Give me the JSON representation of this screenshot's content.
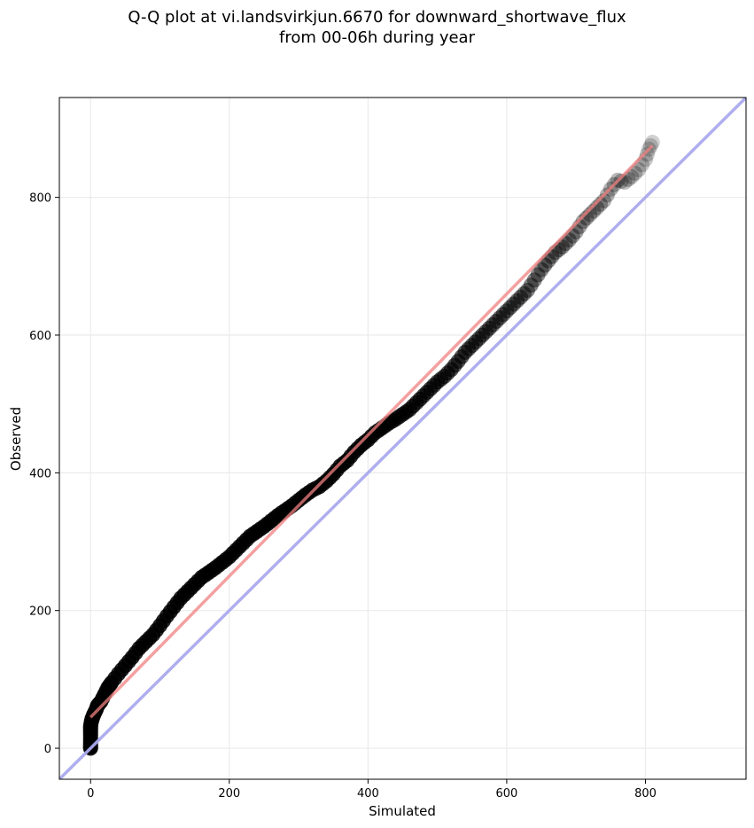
{
  "title_line1": "Q-Q plot at vi.landsvirkjun.6670 for downward_shortwave_flux",
  "title_line2": "from 00-06h during year",
  "chart_data": {
    "type": "scatter",
    "title": "Q-Q plot at vi.landsvirkjun.6670 for downward_shortwave_flux from 00-06h during year",
    "xlabel": "Simulated",
    "ylabel": "Observed",
    "xlim": [
      -45,
      945
    ],
    "ylim": [
      -45,
      945
    ],
    "xticks": [
      0,
      200,
      400,
      600,
      800
    ],
    "yticks": [
      0,
      200,
      400,
      600,
      800
    ],
    "grid": true,
    "series": [
      {
        "kind": "quantile-points",
        "color": "#000000",
        "x": [
          0,
          0,
          0,
          0,
          0,
          0,
          0,
          1,
          2,
          3,
          5,
          8,
          10,
          15,
          20,
          25,
          30,
          40,
          50,
          60,
          70,
          80,
          90,
          100,
          110,
          120,
          130,
          140,
          150,
          160,
          170,
          180,
          190,
          200,
          210,
          220,
          230,
          240,
          250,
          260,
          270,
          280,
          290,
          300,
          310,
          320,
          330,
          340,
          350,
          360,
          370,
          380,
          390,
          400,
          410,
          420,
          430,
          440,
          450,
          460,
          470,
          480,
          490,
          500,
          510,
          520,
          530,
          540,
          550,
          560,
          570,
          580,
          590,
          600,
          610,
          620,
          630,
          640,
          650,
          660,
          670,
          680,
          690,
          700,
          710,
          720,
          730,
          740,
          750,
          760,
          770,
          780,
          790,
          800,
          805,
          810
        ],
        "y": [
          0,
          3,
          8,
          15,
          22,
          28,
          32,
          38,
          42,
          45,
          50,
          56,
          62,
          68,
          78,
          88,
          95,
          108,
          120,
          132,
          145,
          155,
          165,
          178,
          192,
          205,
          218,
          228,
          238,
          248,
          255,
          262,
          270,
          278,
          288,
          298,
          308,
          315,
          322,
          330,
          338,
          345,
          352,
          360,
          368,
          375,
          380,
          388,
          398,
          410,
          418,
          430,
          440,
          448,
          458,
          465,
          472,
          478,
          485,
          492,
          502,
          512,
          522,
          532,
          540,
          550,
          562,
          575,
          585,
          595,
          605,
          615,
          625,
          635,
          645,
          655,
          665,
          680,
          695,
          708,
          720,
          728,
          738,
          750,
          765,
          775,
          785,
          795,
          812,
          825,
          822,
          830,
          840,
          855,
          870,
          880
        ]
      },
      {
        "kind": "fit-line",
        "color": "#f08080",
        "x": [
          0,
          810
        ],
        "y": [
          45,
          875
        ]
      },
      {
        "kind": "identity-line",
        "color": "#aaaaee",
        "x": [
          -45,
          945
        ],
        "y": [
          -45,
          945
        ]
      }
    ]
  }
}
